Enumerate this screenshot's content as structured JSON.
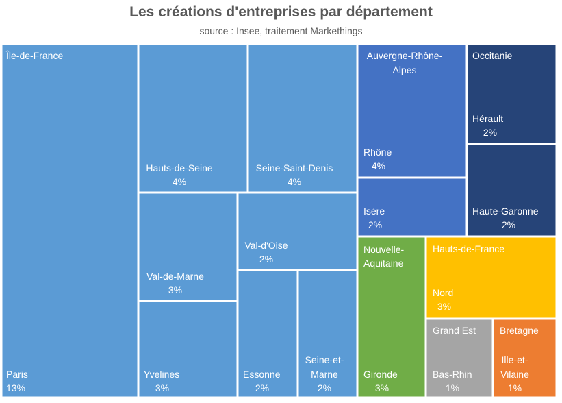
{
  "chart_data": {
    "type": "treemap",
    "title": "Les créations d'entreprises par département",
    "subtitle": "source : Insee, traitement Markethings",
    "groups": [
      {
        "name": "Île-de-France",
        "color": "#5b9bd5",
        "items": [
          {
            "name": "Paris",
            "value": 13
          },
          {
            "name": "Hauts-de-Seine",
            "value": 4
          },
          {
            "name": "Seine-Saint-Denis",
            "value": 4
          },
          {
            "name": "Val-de-Marne",
            "value": 3
          },
          {
            "name": "Yvelines",
            "value": 3
          },
          {
            "name": "Val-d'Oise",
            "value": 2
          },
          {
            "name": "Essonne",
            "value": 2
          },
          {
            "name": "Seine-et-Marne",
            "value": 2
          }
        ]
      },
      {
        "name": "Auvergne-Rhône-Alpes",
        "color": "#4472c4",
        "items": [
          {
            "name": "Rhône",
            "value": 4
          },
          {
            "name": "Isère",
            "value": 2
          }
        ]
      },
      {
        "name": "Occitanie",
        "color": "#264478",
        "items": [
          {
            "name": "Hérault",
            "value": 2
          },
          {
            "name": "Haute-Garonne",
            "value": 2
          }
        ]
      },
      {
        "name": "Nouvelle-Aquitaine",
        "color": "#70ad47",
        "items": [
          {
            "name": "Gironde",
            "value": 3
          }
        ]
      },
      {
        "name": "Hauts-de-France",
        "color": "#ffc000",
        "items": [
          {
            "name": "Nord",
            "value": 3
          }
        ]
      },
      {
        "name": "Grand Est",
        "color": "#a5a5a5",
        "items": [
          {
            "name": "Bas-Rhin",
            "value": 1
          }
        ]
      },
      {
        "name": "Bretagne",
        "color": "#ed7d31",
        "items": [
          {
            "name": "Ille-et-Vilaine",
            "value": 1
          }
        ]
      }
    ]
  }
}
